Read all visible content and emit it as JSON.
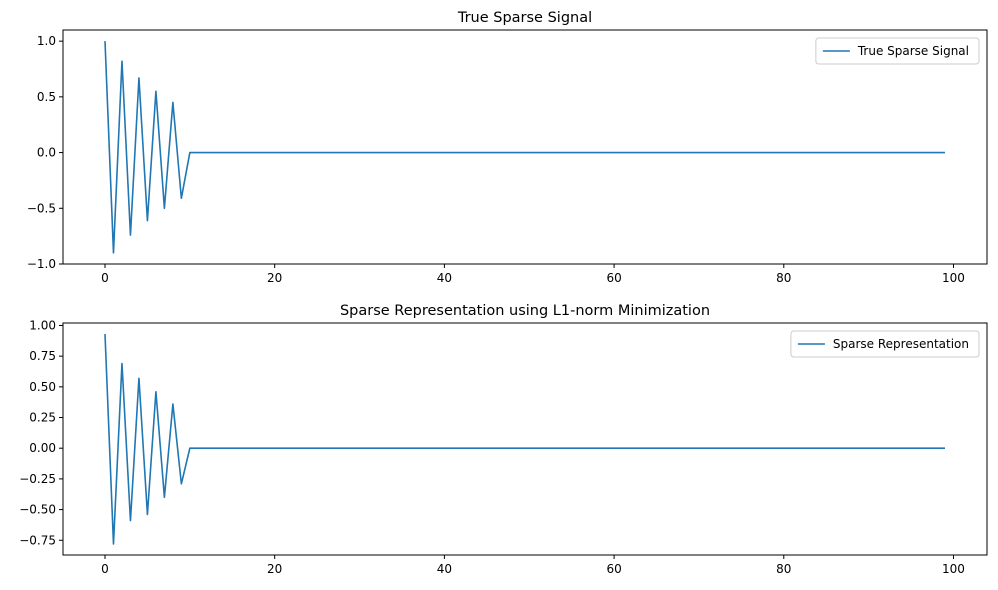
{
  "colors": {
    "series": "#1f77b4"
  },
  "chart_data": [
    {
      "type": "line",
      "title": "True Sparse Signal",
      "xlabel": "",
      "ylabel": "",
      "xlim": [
        -4.95,
        103.95
      ],
      "ylim": [
        -1.0,
        1.1
      ],
      "xticks": [
        0,
        20,
        40,
        60,
        80,
        100
      ],
      "yticks": [
        -1.0,
        -0.5,
        0.0,
        0.5,
        1.0
      ],
      "xtick_labels": [
        "0",
        "20",
        "40",
        "60",
        "80",
        "100"
      ],
      "ytick_labels": [
        "−1.0",
        "−0.5",
        "0.0",
        "0.5",
        "1.0"
      ],
      "grid": false,
      "legend_position": "top-right",
      "series": [
        {
          "name": "True Sparse Signal",
          "x": [
            0,
            1,
            2,
            3,
            4,
            5,
            6,
            7,
            8,
            9,
            10,
            99
          ],
          "y": [
            1.0,
            -0.9,
            0.82,
            -0.74,
            0.67,
            -0.61,
            0.55,
            -0.5,
            0.45,
            -0.41,
            0.0,
            0.0
          ]
        }
      ]
    },
    {
      "type": "line",
      "title": "Sparse Representation using L1-norm Minimization",
      "xlabel": "",
      "ylabel": "",
      "xlim": [
        -4.95,
        103.95
      ],
      "ylim": [
        -0.87,
        1.02
      ],
      "xticks": [
        0,
        20,
        40,
        60,
        80,
        100
      ],
      "yticks": [
        -0.75,
        -0.5,
        -0.25,
        0.0,
        0.25,
        0.5,
        0.75,
        1.0
      ],
      "xtick_labels": [
        "0",
        "20",
        "40",
        "60",
        "80",
        "100"
      ],
      "ytick_labels": [
        "−0.75",
        "−0.50",
        "−0.25",
        "0.00",
        "0.25",
        "0.50",
        "0.75",
        "1.00"
      ],
      "grid": false,
      "legend_position": "top-right",
      "series": [
        {
          "name": "Sparse Representation",
          "x": [
            0,
            1,
            2,
            3,
            4,
            5,
            6,
            7,
            8,
            9,
            10,
            99
          ],
          "y": [
            0.93,
            -0.78,
            0.69,
            -0.59,
            0.57,
            -0.54,
            0.46,
            -0.4,
            0.36,
            -0.29,
            0.0,
            0.0
          ]
        }
      ]
    }
  ]
}
